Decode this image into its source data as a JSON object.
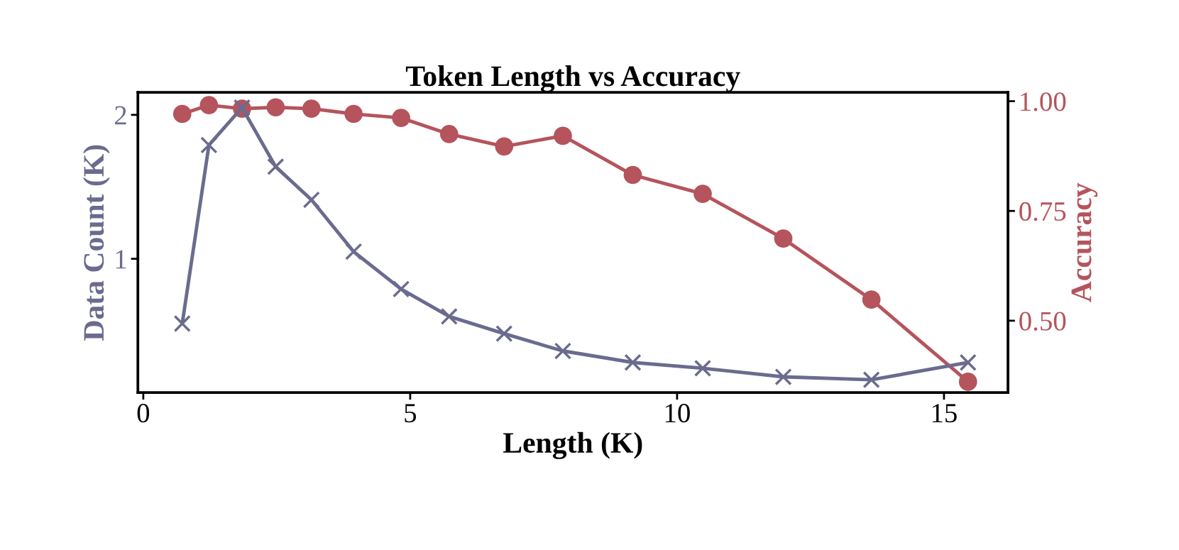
{
  "chart_data": {
    "type": "line",
    "title": "Token Length vs Accuracy",
    "xlabel": "Length (K)",
    "ylabel": "Data Count (K)",
    "y2label": "Accuracy",
    "x": [
      0.73,
      1.23,
      1.85,
      2.48,
      3.15,
      3.94,
      4.83,
      5.73,
      6.76,
      7.86,
      9.17,
      10.48,
      11.99,
      13.64,
      15.45
    ],
    "series": [
      {
        "color": "#6b6b8f",
        "marker": "cross",
        "values": [
          0.55,
          1.79,
          2.05,
          1.64,
          1.41,
          1.05,
          0.79,
          0.6,
          0.48,
          0.36,
          0.28,
          0.24,
          0.18,
          0.16,
          0.28
        ]
      },
      {
        "color": "#b5545c",
        "marker": "circle",
        "axis": "y2",
        "values": [
          0.971,
          0.991,
          0.983,
          0.986,
          0.983,
          0.971,
          0.962,
          0.925,
          0.897,
          0.921,
          0.832,
          0.789,
          0.687,
          0.548,
          0.361
        ]
      }
    ],
    "xlim": [
      -0.1,
      16.2
    ],
    "xticks": [
      0,
      5,
      10,
      15
    ],
    "ylim": [
      0.07,
      2.156
    ],
    "yticks": [
      1,
      2
    ],
    "y2lim": [
      0.336,
      1.02
    ],
    "y2ticks": [
      {
        "value": 0.5,
        "label": "0.50"
      },
      {
        "value": 0.75,
        "label": "0.75"
      },
      {
        "value": 1.0,
        "label": "1.00"
      }
    ],
    "grid": false,
    "legend": false,
    "line_style": "solid"
  }
}
